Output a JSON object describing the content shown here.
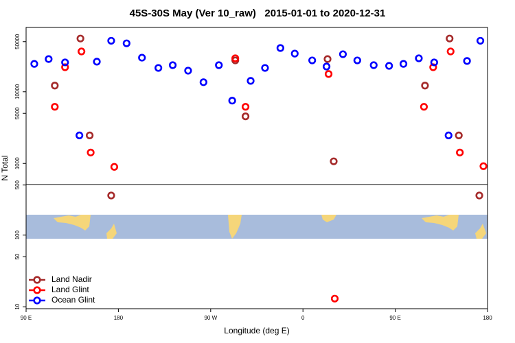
{
  "chart_data": {
    "type": "scatter",
    "title": "45S-30S May (Ver 10_raw)   2015-01-01 to 2020-12-31",
    "x_label": "Longitude (deg E)",
    "y_label": "N Total",
    "xlim": [
      90,
      540
    ],
    "xticks": [
      {
        "value": 90,
        "label": "90 E"
      },
      {
        "value": 180,
        "label": "180"
      },
      {
        "value": 270,
        "label": "90 W"
      },
      {
        "value": 360,
        "label": "0"
      },
      {
        "value": 450,
        "label": "90 E"
      },
      {
        "value": 540,
        "label": "180"
      }
    ],
    "ylim": [
      9.4,
      79000
    ],
    "ylog": true,
    "yticks": [
      10,
      50,
      100,
      500,
      1000,
      5000,
      10000,
      50000
    ],
    "legend": "bottom-left",
    "series": [
      {
        "name": "Land Nadir",
        "color": "#a52a2a",
        "x": [
          118,
          143,
          152,
          173,
          294,
          304,
          384,
          390,
          479,
          503,
          512,
          532
        ],
        "values": [
          12200,
          55300,
          2460,
          357,
          27400,
          4540,
          28600,
          1070,
          12200,
          55300,
          2460,
          357
        ]
      },
      {
        "name": "Land Glint",
        "color": "#ff0000",
        "x": [
          118,
          128,
          144,
          153,
          176,
          294,
          304,
          385,
          391,
          478,
          487,
          504,
          513,
          536
        ],
        "values": [
          6170,
          22000,
          36500,
          1420,
          895,
          29300,
          6170,
          17700,
          13,
          6170,
          22000,
          36500,
          1420,
          916
        ]
      },
      {
        "name": "Ocean Glint",
        "color": "#0000ff",
        "x": [
          98,
          112,
          128,
          142,
          159,
          173,
          188,
          203,
          219,
          233,
          248,
          263,
          278,
          291,
          309,
          323,
          338,
          352,
          369,
          383,
          399,
          413,
          429,
          444,
          458,
          473,
          488,
          502,
          520,
          533
        ],
        "values": [
          24500,
          28600,
          25700,
          2460,
          26300,
          51500,
          47400,
          29900,
          21500,
          23500,
          19700,
          13600,
          23500,
          7520,
          14200,
          21500,
          40800,
          34100,
          27400,
          22500,
          33400,
          27400,
          23500,
          23000,
          24500,
          29300,
          25700,
          2460,
          26900,
          51500
        ]
      }
    ]
  }
}
